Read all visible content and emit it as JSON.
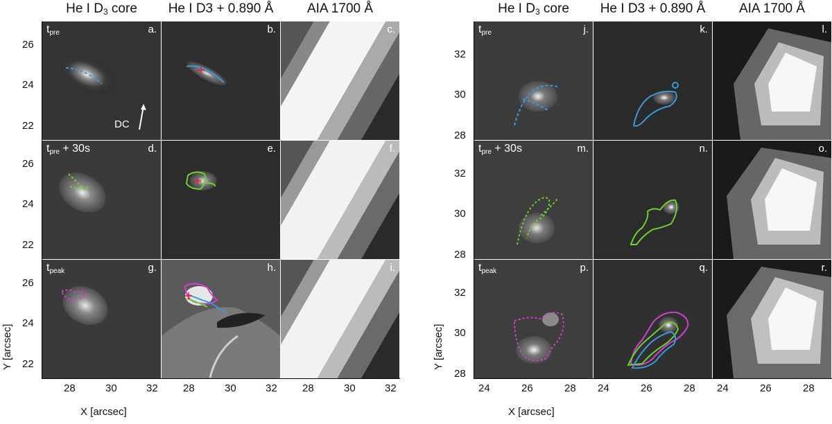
{
  "columns_left": [
    {
      "pre": "He I D",
      "sub": "3",
      "post": " core"
    },
    {
      "pre": "He I D3 + 0.890 Å",
      "sub": "",
      "post": ""
    },
    {
      "pre": "AIA 1700 Å",
      "sub": "",
      "post": ""
    }
  ],
  "columns_right": [
    {
      "pre": "He I D",
      "sub": "3",
      "post": " core"
    },
    {
      "pre": "He I D3 + 0.890 Å",
      "sub": "",
      "post": ""
    },
    {
      "pre": "AIA 1700 Å",
      "sub": "",
      "post": ""
    }
  ],
  "rows": [
    {
      "base": "t",
      "sub": "pre",
      "suffix": ""
    },
    {
      "base": "t",
      "sub": "pre",
      "suffix": " + 30s"
    },
    {
      "base": "t",
      "sub": "peak",
      "suffix": ""
    }
  ],
  "panel_letters_left": [
    "a.",
    "b.",
    "c.",
    "d.",
    "e.",
    "f.",
    "g.",
    "h.",
    "i."
  ],
  "panel_letters_right": [
    "j.",
    "k.",
    "l.",
    "m.",
    "n.",
    "o.",
    "p.",
    "q.",
    "r."
  ],
  "dc_label": "DC",
  "y_axis_label": "Y [arcsec]",
  "x_axis_label": "X [arcsec]",
  "left_yticks": [
    "26",
    "24",
    "22"
  ],
  "right_yticks": [
    "32",
    "30",
    "28"
  ],
  "left_xticks": [
    "28",
    "30",
    "32"
  ],
  "right_xticks": [
    "24",
    "26",
    "28"
  ],
  "colors": {
    "contour_pre": "#3a9ad9",
    "contour_mid": "#6dd230",
    "contour_peak": "#d040d0",
    "marker": "#e8203a"
  }
}
